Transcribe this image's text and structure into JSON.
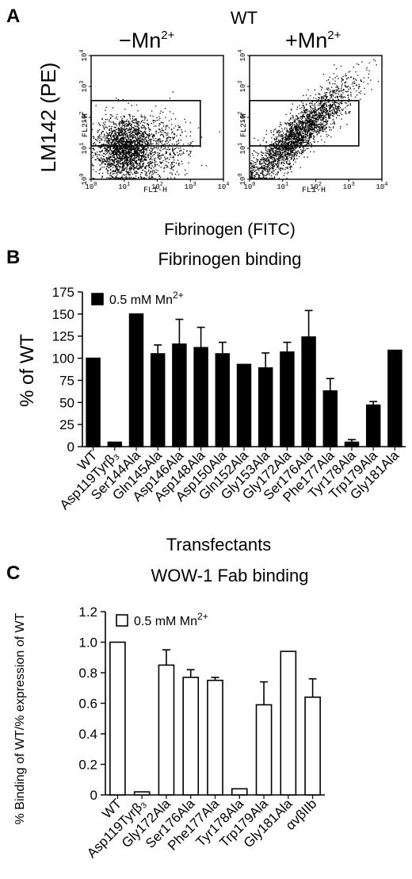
{
  "panels": {
    "a": {
      "letter": "A",
      "title": "WT",
      "minus_label": "−Mn",
      "plus_label": "+Mn",
      "ion_sup": "2+",
      "ylabel": "LM142 (PE)",
      "xlabel": "Fibrinogen (FITC)",
      "plot_xaxis": "FL1-H",
      "plot_yaxis": "FL2-H",
      "log_tick_base": "10",
      "log_tick_exps": [
        "0",
        "1",
        "2",
        "3",
        "4"
      ]
    },
    "b": {
      "letter": "B",
      "subtitle": "Fibrinogen binding"
    },
    "c": {
      "letter": "C",
      "subtitle": "WOW-1 Fab binding"
    }
  },
  "chart_data": [
    {
      "type": "scatter",
      "panel": "A",
      "title": "WT",
      "description_free": false,
      "plots": [
        {
          "condition": "−Mn2+",
          "xlabel": "FL1-H",
          "ylabel": "FL2-H",
          "xlim": [
            1,
            10000
          ],
          "ylim": [
            1,
            10000
          ],
          "scale": "log",
          "gate": {
            "x": [
              1,
              2000
            ],
            "y": [
              12,
              350
            ]
          },
          "cluster_center": [
            10,
            10
          ]
        },
        {
          "condition": "+Mn2+",
          "xlabel": "FL1-H",
          "ylabel": "FL2-H",
          "xlim": [
            1,
            10000
          ],
          "ylim": [
            1,
            10000
          ],
          "scale": "log",
          "gate": {
            "x": [
              1,
              2000
            ],
            "y": [
              12,
              350
            ]
          },
          "cluster_center": [
            30,
            30
          ]
        }
      ],
      "ylabel": "LM142 (PE)",
      "xlabel": "Fibrinogen (FITC)"
    },
    {
      "type": "bar",
      "panel": "B",
      "title": "Fibrinogen binding",
      "ylabel": "% of WT",
      "xlabel": "Transfectants",
      "ylim": [
        0,
        175
      ],
      "yticks": [
        "0",
        "25",
        "50",
        "75",
        "100",
        "125",
        "150",
        "175"
      ],
      "legend": {
        "label": "0.5 mM Mn",
        "sup": "2+",
        "position": "top-left",
        "fill": "#000000"
      },
      "categories": [
        "WT",
        "Asp119Tyrβ₃",
        "Ser144Ala",
        "Gln145Ala",
        "Asp146Ala",
        "Asp148Ala",
        "Asp150Ala",
        "Gln152Ala",
        "Gly153Ala",
        "Gly172Ala",
        "Ser176Ala",
        "Phe177Ala",
        "Tyr178Ala",
        "Trp179Ala",
        "Gly181Ala"
      ],
      "values": [
        100,
        5,
        150,
        105,
        116,
        112,
        105,
        93,
        89,
        107,
        124,
        63,
        5,
        47,
        109
      ],
      "errors": [
        0,
        0,
        0,
        10,
        28,
        23,
        13,
        0,
        17,
        11,
        30,
        14,
        3,
        4,
        0
      ]
    },
    {
      "type": "bar",
      "panel": "C",
      "title": "WOW-1 Fab binding",
      "ylabel": "% Binding of WT/% expression of WT",
      "xlabel": "",
      "ylim": [
        0,
        1.2
      ],
      "yticks": [
        "0",
        "0.2",
        "0.4",
        "0.6",
        "0.8",
        "1.0",
        "1.2"
      ],
      "legend": {
        "label": "0.5 mM Mn",
        "sup": "2+",
        "position": "top-left",
        "fill": "#ffffff"
      },
      "categories": [
        "WT",
        "Asp119Tyrβ₃",
        "Gly172Ala",
        "Ser176Ala",
        "Phe177Ala",
        "Tyr178Ala",
        "Trp179Ala",
        "Gly181Ala",
        "αvβIIb"
      ],
      "values": [
        1.0,
        0.02,
        0.85,
        0.77,
        0.75,
        0.04,
        0.59,
        0.94,
        0.64
      ],
      "errors": [
        0,
        0,
        0.1,
        0.05,
        0.02,
        0,
        0.15,
        0,
        0.12
      ]
    }
  ]
}
